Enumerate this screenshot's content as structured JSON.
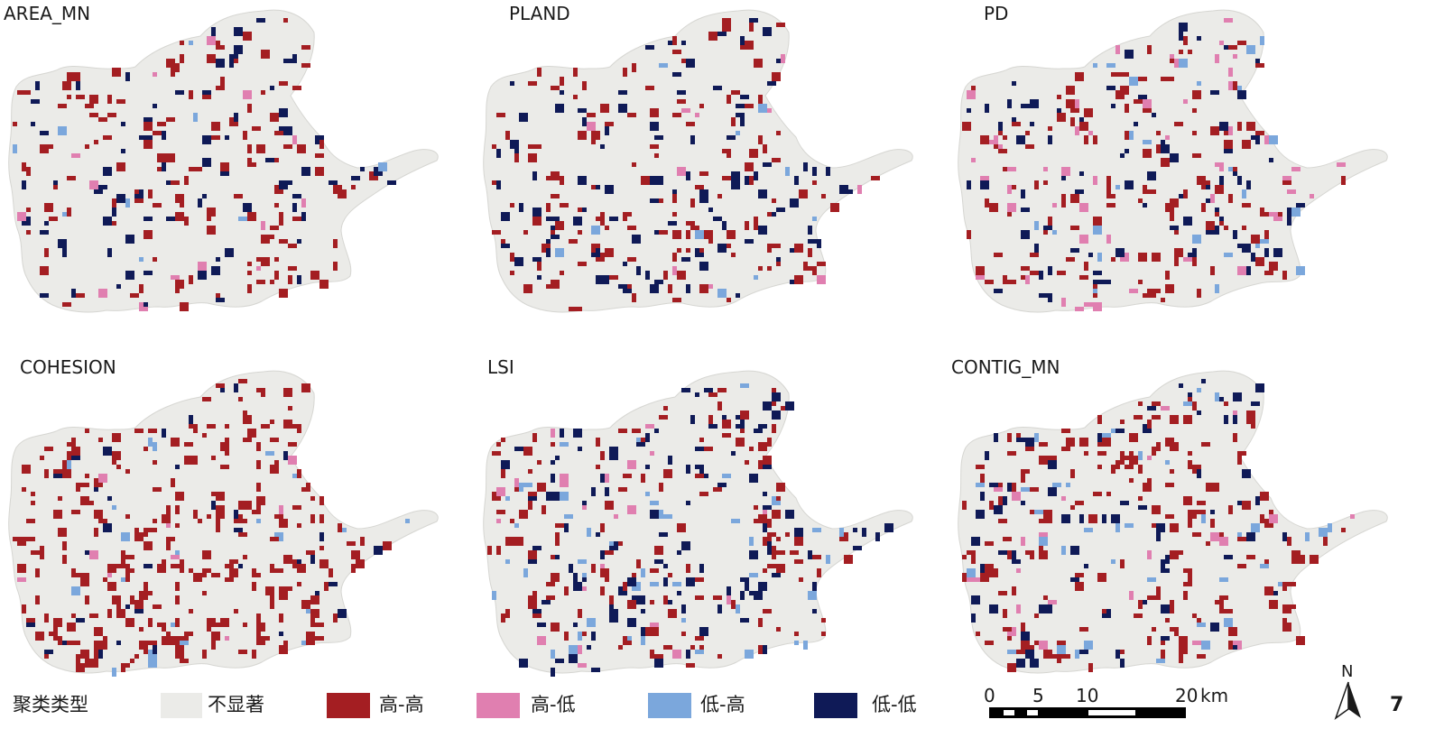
{
  "panels": [
    {
      "title": "AREA_MN"
    },
    {
      "title": "PLAND"
    },
    {
      "title": "PD"
    },
    {
      "title": "COHESION"
    },
    {
      "title": "LSI"
    },
    {
      "title": "CONTIG_MN"
    }
  ],
  "legend": {
    "title": "聚类类型",
    "items": [
      {
        "label": "不显著",
        "color": "#ebebe8"
      },
      {
        "label": "高-高",
        "color": "#a41e22"
      },
      {
        "label": "高-低",
        "color": "#e07fb0"
      },
      {
        "label": "低-高",
        "color": "#7ba7dc"
      },
      {
        "label": "低-低",
        "color": "#0f1a57"
      }
    ]
  },
  "scale_bar": {
    "ticks": [
      "0",
      "5",
      "10",
      "20"
    ],
    "unit": "km"
  },
  "north_arrow": {
    "label": "N"
  },
  "figure_number": "7",
  "colors": {
    "map_fill": "#ebebe8",
    "map_stroke": "#d6d6d2"
  }
}
